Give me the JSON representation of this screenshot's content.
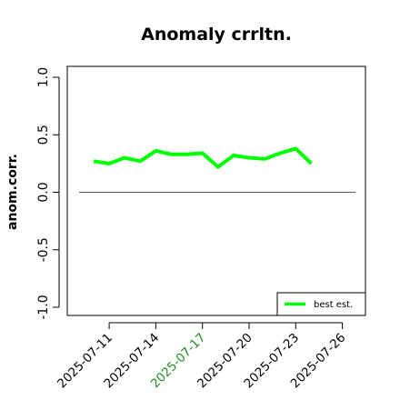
{
  "chart_data": {
    "type": "line",
    "title": "Anomaly crrltn.",
    "xlabel": "",
    "ylabel": "anom.corr.",
    "ylim": [
      -1.0,
      1.0
    ],
    "yticks": [
      "-1.0",
      "-0.5",
      "0.0",
      "0.5",
      "1.0"
    ],
    "x": [
      "2025-07-10",
      "2025-07-11",
      "2025-07-12",
      "2025-07-13",
      "2025-07-14",
      "2025-07-15",
      "2025-07-16",
      "2025-07-17",
      "2025-07-18",
      "2025-07-19",
      "2025-07-20",
      "2025-07-21",
      "2025-07-22",
      "2025-07-23",
      "2025-07-24"
    ],
    "xticks": [
      "2025-07-11",
      "2025-07-14",
      "2025-07-17",
      "2025-07-20",
      "2025-07-23",
      "2025-07-26"
    ],
    "xtick_colors": [
      "#000000",
      "#000000",
      "#228b22",
      "#000000",
      "#000000",
      "#000000"
    ],
    "series": [
      {
        "name": "best est.",
        "color": "#00ff00",
        "values": [
          0.27,
          0.25,
          0.3,
          0.27,
          0.36,
          0.33,
          0.33,
          0.34,
          0.22,
          0.32,
          0.3,
          0.29,
          0.34,
          0.38,
          0.25
        ]
      }
    ],
    "reference_line": 0.0,
    "legend": "bottom-right",
    "grid": false
  }
}
